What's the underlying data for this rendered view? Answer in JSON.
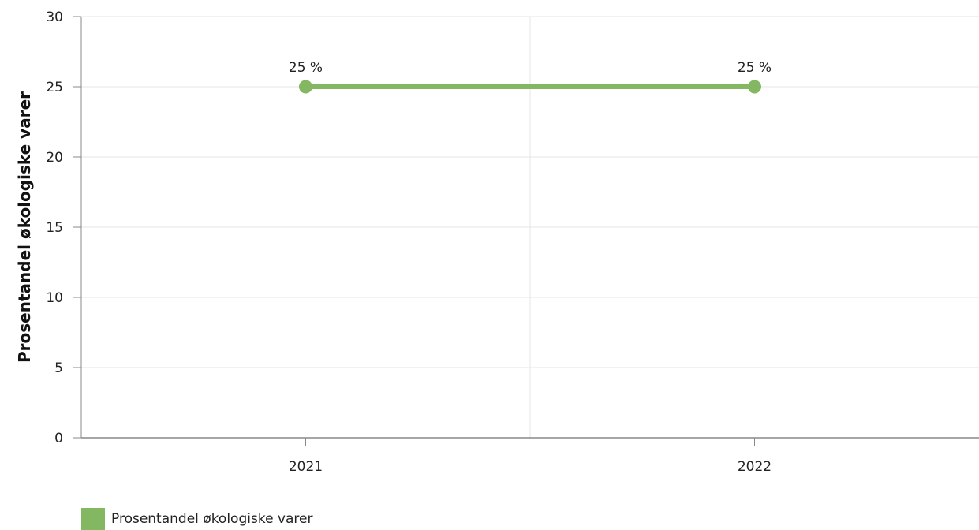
{
  "chart_data": {
    "type": "line",
    "categories": [
      "2021",
      "2022"
    ],
    "series": [
      {
        "name": "Prosentandel økologiske varer",
        "values": [
          25,
          25
        ],
        "color": "#84b761"
      }
    ],
    "data_labels": [
      "25 %",
      "25 %"
    ],
    "ylabel": "Prosentandel økologiske varer",
    "ylim": [
      0,
      30
    ],
    "yticks": [
      0,
      5,
      10,
      15,
      20,
      25,
      30
    ],
    "grid": true,
    "legend_position": "bottom-left"
  }
}
